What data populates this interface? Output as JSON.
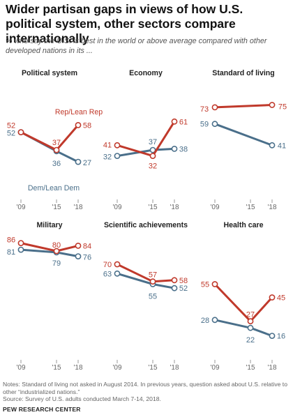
{
  "title": "Wider partisan gaps in views of how U.S. political system, other sectors compare internationally",
  "subtitle": "% who say the U.S. is best in the world or above average compared with other developed nations in its ...",
  "notes": "Notes: Standard of living not asked in August 2014. In previous years, question asked about U.S. relative to other “industrialized nations.”",
  "source": "Source: Survey of U.S. adults conducted March 7-14, 2018.",
  "footer": "PEW RESEARCH CENTER",
  "colors": {
    "rep": "#c0392b",
    "dem": "#4a6f8a",
    "tick": "#666666"
  },
  "chart_data": [
    {
      "type": "line",
      "title": "Political system",
      "x": [
        "'09",
        "'15",
        "'18"
      ],
      "series": [
        {
          "name": "Rep/Lean Rep",
          "x": [
            2009,
            2014.6,
            2018
          ],
          "values": [
            52,
            37,
            58
          ],
          "labels": [
            "52",
            "37",
            "58"
          ]
        },
        {
          "name": "Dem/Lean Dem",
          "x": [
            2009,
            2014.6,
            2018
          ],
          "values": [
            52,
            36,
            27
          ],
          "labels": [
            "52",
            "36",
            "27"
          ]
        }
      ]
    },
    {
      "type": "line",
      "title": "Economy",
      "x": [
        "'09",
        "'15",
        "'18"
      ],
      "series": [
        {
          "name": "Rep/Lean Rep",
          "x": [
            2009,
            2014.6,
            2018
          ],
          "values": [
            41,
            32,
            61
          ],
          "labels": [
            "41",
            "32",
            "61"
          ]
        },
        {
          "name": "Dem/Lean Dem",
          "x": [
            2009,
            2014.6,
            2018
          ],
          "values": [
            32,
            37,
            38
          ],
          "labels": [
            "32",
            "37",
            "38"
          ]
        }
      ]
    },
    {
      "type": "line",
      "title": "Standard of living",
      "x": [
        "'09",
        "'15",
        "'18"
      ],
      "series": [
        {
          "name": "Rep/Lean Rep",
          "x": [
            2009,
            2018
          ],
          "values": [
            73,
            75
          ],
          "labels": [
            "73",
            "75"
          ]
        },
        {
          "name": "Dem/Lean Dem",
          "x": [
            2009,
            2018
          ],
          "values": [
            59,
            41
          ],
          "labels": [
            "59",
            "41"
          ]
        }
      ]
    },
    {
      "type": "line",
      "title": "Military",
      "x": [
        "'09",
        "'15",
        "'18"
      ],
      "series": [
        {
          "name": "Rep/Lean Rep",
          "x": [
            2009,
            2014.6,
            2018
          ],
          "values": [
            86,
            80,
            84
          ],
          "labels": [
            "86",
            "80",
            "84"
          ]
        },
        {
          "name": "Dem/Lean Dem",
          "x": [
            2009,
            2014.6,
            2018
          ],
          "values": [
            81,
            79,
            76
          ],
          "labels": [
            "81",
            "79",
            "76"
          ]
        }
      ]
    },
    {
      "type": "line",
      "title": "Scientific achievements",
      "x": [
        "'09",
        "'15",
        "'18"
      ],
      "series": [
        {
          "name": "Rep/Lean Rep",
          "x": [
            2009,
            2014.6,
            2018
          ],
          "values": [
            70,
            57,
            58
          ],
          "labels": [
            "70",
            "57",
            "58"
          ]
        },
        {
          "name": "Dem/Lean Dem",
          "x": [
            2009,
            2014.6,
            2018
          ],
          "values": [
            63,
            55,
            52
          ],
          "labels": [
            "63",
            "55",
            "52"
          ]
        }
      ]
    },
    {
      "type": "line",
      "title": "Health care",
      "x": [
        "'09",
        "'15",
        "'18"
      ],
      "series": [
        {
          "name": "Rep/Lean Rep",
          "x": [
            2009,
            2014.6,
            2018
          ],
          "values": [
            55,
            27,
            45
          ],
          "labels": [
            "55",
            "27",
            "45"
          ]
        },
        {
          "name": "Dem/Lean Dem",
          "x": [
            2009,
            2014.6,
            2018
          ],
          "values": [
            28,
            22,
            16
          ],
          "labels": [
            "28",
            "22",
            "16"
          ]
        }
      ]
    }
  ]
}
